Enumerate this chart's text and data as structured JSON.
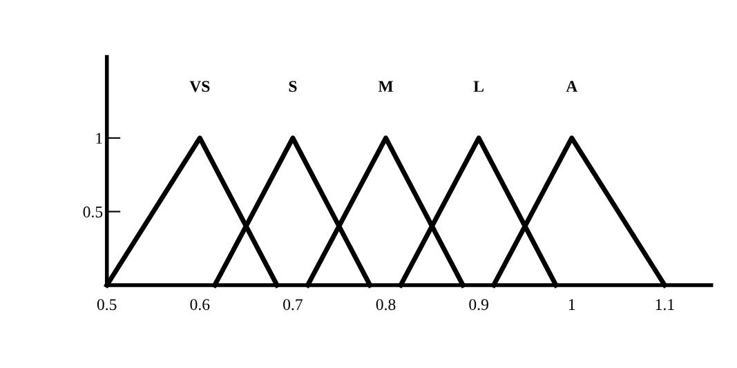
{
  "chart_data": {
    "type": "line",
    "xlim": [
      0.5,
      1.15
    ],
    "ylim": [
      0,
      1.55
    ],
    "xticks": [
      0.5,
      0.6,
      0.7,
      0.8,
      0.9,
      1,
      1.1
    ],
    "yticks": [
      0.5,
      1
    ],
    "grid": false,
    "legend": false,
    "marker": "none",
    "line_style": "solid",
    "series": [
      {
        "name": "VS",
        "color": "#000000",
        "x": [
          0.5,
          0.6,
          0.683
        ],
        "values": [
          0,
          1,
          0
        ]
      },
      {
        "name": "S",
        "color": "#000000",
        "x": [
          0.616,
          0.7,
          0.783
        ],
        "values": [
          0,
          1,
          0
        ]
      },
      {
        "name": "M",
        "color": "#000000",
        "x": [
          0.716,
          0.8,
          0.883
        ],
        "values": [
          0,
          1,
          0
        ]
      },
      {
        "name": "L",
        "color": "#000000",
        "x": [
          0.816,
          0.9,
          0.983
        ],
        "values": [
          0,
          1,
          0
        ]
      },
      {
        "name": "A",
        "color": "#000000",
        "x": [
          0.916,
          1.0,
          1.1
        ],
        "values": [
          0,
          1,
          0
        ]
      }
    ]
  }
}
